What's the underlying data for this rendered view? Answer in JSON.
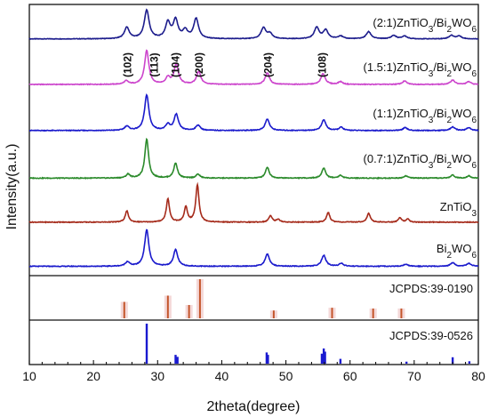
{
  "chart_data": {
    "type": "line",
    "xlabel": "2theta(degree)",
    "ylabel": "Intensity(a.u.)",
    "xlim": [
      10,
      80
    ],
    "x_ticks": [
      10,
      20,
      30,
      40,
      50,
      60,
      70,
      80
    ],
    "grid": false,
    "peak_labels": [
      {
        "text": "(102)",
        "x": 25.3
      },
      {
        "text": "(113)",
        "x": 29.5
      },
      {
        "text": "(104)",
        "x": 32.8
      },
      {
        "text": "(200)",
        "x": 36.5
      },
      {
        "text": "(204)",
        "x": 47.2
      },
      {
        "text": "(108)",
        "x": 55.7
      }
    ],
    "series": [
      {
        "label": "(2:1)ZnTiO3/Bi2WO6",
        "color": "#1c1c8c",
        "baseline": 0.1,
        "peak_width": 0.45,
        "peaks": [
          [
            25.2,
            0.4
          ],
          [
            28.3,
            1.0
          ],
          [
            31.6,
            0.56
          ],
          [
            32.8,
            0.64
          ],
          [
            34.3,
            0.28
          ],
          [
            36.0,
            0.7
          ],
          [
            46.5,
            0.38
          ],
          [
            47.5,
            0.18
          ],
          [
            54.8,
            0.4
          ],
          [
            56.2,
            0.3
          ],
          [
            58.5,
            0.1
          ],
          [
            62.9,
            0.25
          ],
          [
            66.8,
            0.12
          ],
          [
            68.5,
            0.1
          ],
          [
            75.8,
            0.12
          ],
          [
            77.0,
            0.1
          ]
        ]
      },
      {
        "label": "(1.5:1)ZnTiO3/Bi2WO6",
        "color": "#cc44cc",
        "baseline": 0.08,
        "peak_width": 0.4,
        "peaks": [
          [
            25.1,
            0.1
          ],
          [
            28.3,
            1.0
          ],
          [
            31.6,
            0.2
          ],
          [
            32.9,
            0.6
          ],
          [
            36.4,
            0.38
          ],
          [
            47.1,
            0.34
          ],
          [
            55.8,
            0.32
          ],
          [
            58.5,
            0.08
          ],
          [
            68.5,
            0.1
          ],
          [
            76.0,
            0.13
          ],
          [
            78.5,
            0.08
          ]
        ]
      },
      {
        "label": "(1:1)ZnTiO3/Bi2WO6",
        "color": "#1a1acc",
        "baseline": 0.08,
        "peak_width": 0.4,
        "peaks": [
          [
            25.2,
            0.12
          ],
          [
            28.3,
            1.0
          ],
          [
            31.6,
            0.16
          ],
          [
            32.9,
            0.45
          ],
          [
            36.3,
            0.15
          ],
          [
            47.1,
            0.32
          ],
          [
            55.9,
            0.3
          ],
          [
            58.6,
            0.09
          ],
          [
            68.6,
            0.08
          ],
          [
            76.0,
            0.1
          ],
          [
            78.5,
            0.08
          ]
        ]
      },
      {
        "label": "(0.7:1)ZnTiO3/Bi2WO6",
        "color": "#2a8a2a",
        "baseline": 0.06,
        "peak_width": 0.35,
        "peaks": [
          [
            25.4,
            0.1
          ],
          [
            28.3,
            1.0
          ],
          [
            32.8,
            0.38
          ],
          [
            36.3,
            0.1
          ],
          [
            47.1,
            0.28
          ],
          [
            55.9,
            0.26
          ],
          [
            58.5,
            0.07
          ],
          [
            68.7,
            0.06
          ],
          [
            76.0,
            0.08
          ],
          [
            78.5,
            0.06
          ]
        ]
      },
      {
        "label": "ZnTiO3",
        "color": "#a52a1a",
        "baseline": 0.05,
        "peak_width": 0.3,
        "peaks": [
          [
            25.2,
            0.3
          ],
          [
            31.6,
            0.62
          ],
          [
            34.4,
            0.4
          ],
          [
            36.2,
            1.0
          ],
          [
            47.6,
            0.18
          ],
          [
            48.8,
            0.08
          ],
          [
            56.6,
            0.26
          ],
          [
            62.9,
            0.24
          ],
          [
            67.8,
            0.12
          ],
          [
            69.0,
            0.08
          ]
        ]
      },
      {
        "label": "Bi2WO6",
        "color": "#1a1acc",
        "baseline": 0.06,
        "peak_width": 0.4,
        "peaks": [
          [
            25.3,
            0.12
          ],
          [
            28.3,
            1.0
          ],
          [
            32.8,
            0.45
          ],
          [
            47.1,
            0.34
          ],
          [
            55.9,
            0.3
          ],
          [
            58.6,
            0.08
          ],
          [
            68.7,
            0.06
          ],
          [
            76.0,
            0.1
          ],
          [
            78.5,
            0.08
          ]
        ]
      }
    ],
    "references": [
      {
        "label": "JCPDS:39-0190",
        "color": "#c4552a",
        "sticks": [
          [
            24.8,
            0.42
          ],
          [
            31.6,
            0.58
          ],
          [
            34.9,
            0.34
          ],
          [
            36.6,
            1.0
          ],
          [
            48.1,
            0.2
          ],
          [
            57.2,
            0.27
          ],
          [
            63.6,
            0.25
          ],
          [
            68.0,
            0.25
          ]
        ]
      },
      {
        "label": "JCPDS:39-0526",
        "color": "#1a1ad0",
        "sticks": [
          [
            28.3,
            1.0
          ],
          [
            32.8,
            0.22
          ],
          [
            33.1,
            0.17
          ],
          [
            47.0,
            0.28
          ],
          [
            47.2,
            0.22
          ],
          [
            55.6,
            0.25
          ],
          [
            55.9,
            0.38
          ],
          [
            56.1,
            0.3
          ],
          [
            58.5,
            0.12
          ],
          [
            68.8,
            0.05
          ],
          [
            76.0,
            0.16
          ],
          [
            78.6,
            0.06
          ]
        ]
      }
    ]
  }
}
